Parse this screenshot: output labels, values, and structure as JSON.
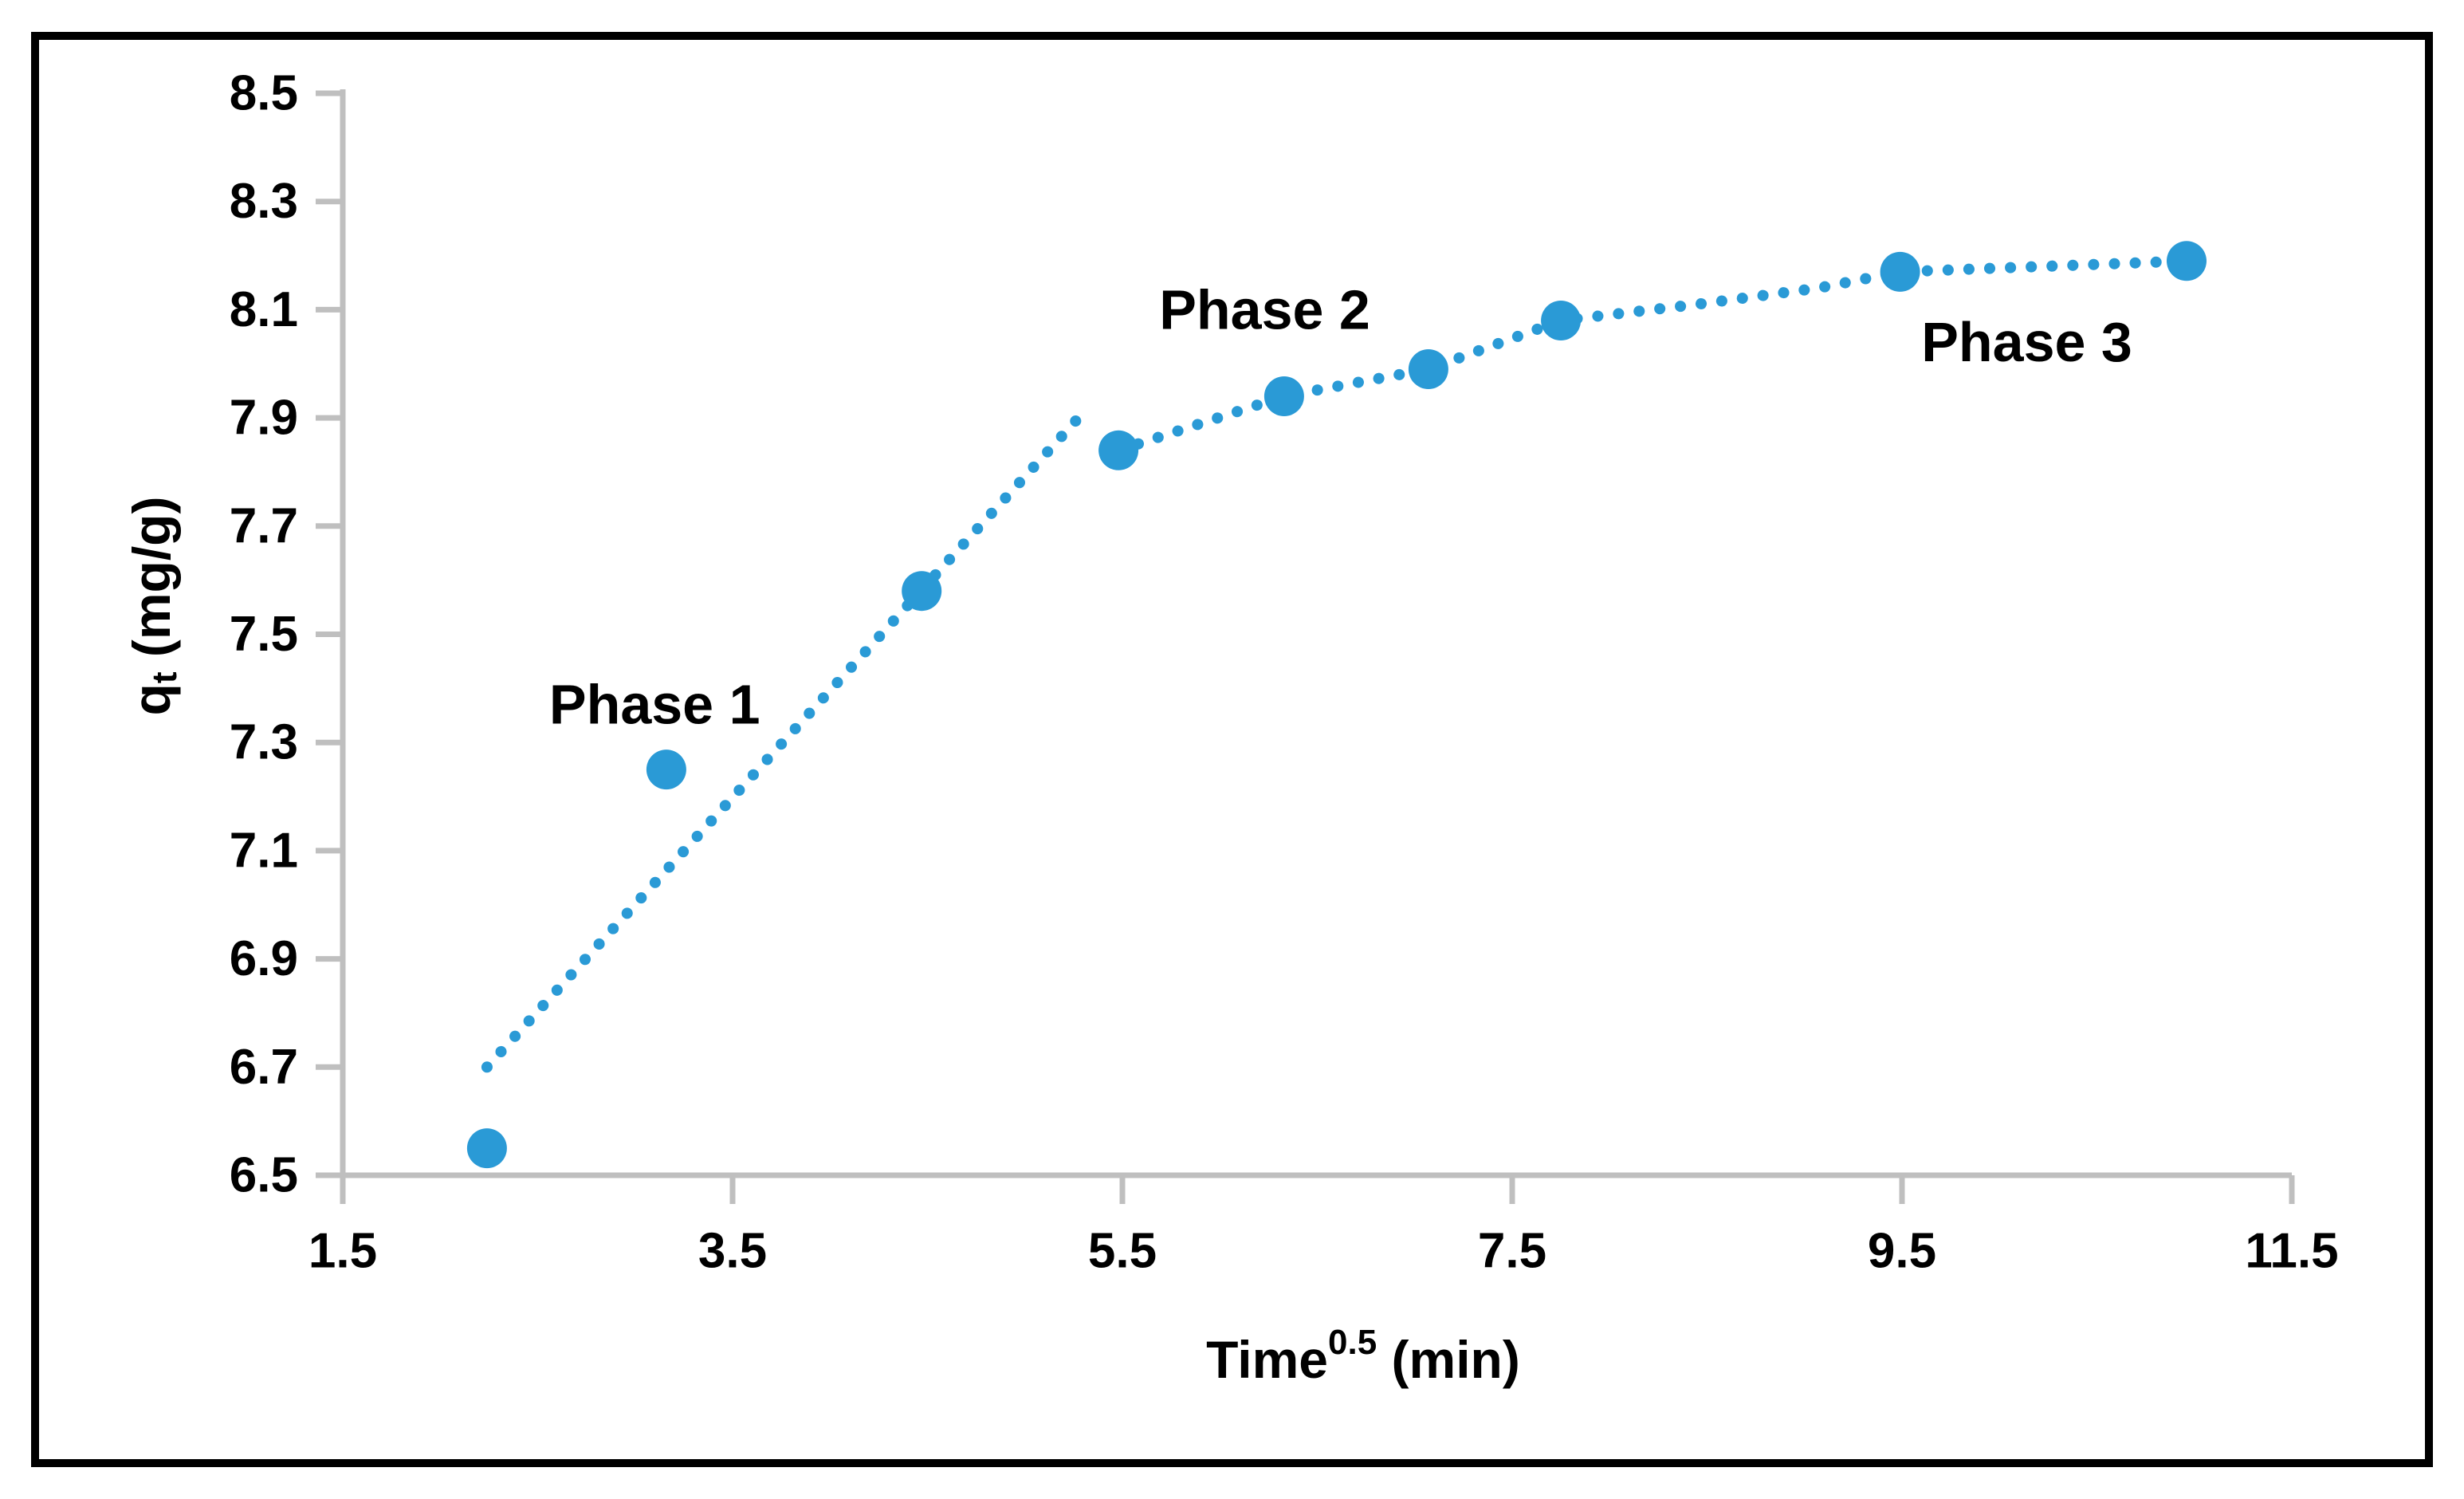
{
  "figure": {
    "background": "#ffffff",
    "border_color": "#000000",
    "border_width": 10
  },
  "chart_data": {
    "type": "scatter",
    "title": "",
    "xlabel": "Time^0.5 (min)",
    "ylabel": "q_t (mg/g)",
    "xlabel_parts": [
      {
        "text": "Time",
        "style": "normal"
      },
      {
        "text": "0.5",
        "style": "superscript"
      },
      {
        "text": " (min)",
        "style": "normal"
      }
    ],
    "ylabel_parts": [
      {
        "text": "q",
        "style": "normal"
      },
      {
        "text": "t",
        "style": "subscript"
      },
      {
        "text": " (mg/g)",
        "style": "normal"
      }
    ],
    "xlim": [
      1.5,
      11.5
    ],
    "ylim": [
      6.5,
      8.5
    ],
    "x_ticks": [
      "1.5",
      "3.5",
      "5.5",
      "7.5",
      "9.5",
      "11.5"
    ],
    "x_tick_values": [
      1.5,
      3.5,
      5.5,
      7.5,
      9.5,
      11.5
    ],
    "y_ticks": [
      "8.5",
      "8.3",
      "8.1",
      "7.9",
      "7.7",
      "7.5",
      "7.3",
      "7.1",
      "6.9",
      "6.7",
      "6.5"
    ],
    "y_tick_values": [
      8.5,
      8.3,
      8.1,
      7.9,
      7.7,
      7.5,
      7.3,
      7.1,
      6.9,
      6.7,
      6.5
    ],
    "grid": false,
    "legend": false,
    "series": [
      {
        "name": "qt-vs-sqrt-time",
        "marker": "circle",
        "points": [
          [
            2.24,
            6.55
          ],
          [
            3.16,
            7.25
          ],
          [
            4.47,
            7.58
          ],
          [
            5.48,
            7.84
          ],
          [
            6.33,
            7.94
          ],
          [
            7.07,
            7.99
          ],
          [
            7.75,
            8.08
          ],
          [
            9.49,
            8.17
          ],
          [
            10.96,
            8.19
          ]
        ]
      }
    ],
    "trendlines": [
      {
        "name": "phase-1-trendline",
        "style": "dotted",
        "points": [
          [
            2.24,
            6.7
          ],
          [
            5.3,
            7.91
          ]
        ]
      },
      {
        "name": "phase-2-3-trendline",
        "style": "dotted",
        "points": [
          [
            5.48,
            7.84
          ],
          [
            6.33,
            7.94
          ],
          [
            7.07,
            7.99
          ],
          [
            7.75,
            8.08
          ],
          [
            8.45,
            8.11
          ],
          [
            9.07,
            8.14
          ],
          [
            9.49,
            8.17
          ],
          [
            10.96,
            8.19
          ]
        ]
      }
    ],
    "annotations": [
      {
        "text": "Phase 1",
        "x": 3.1,
        "y": 7.37
      },
      {
        "text": "Phase 2",
        "x": 6.23,
        "y": 8.1
      },
      {
        "text": "Phase 3",
        "x": 10.14,
        "y": 8.04
      }
    ],
    "colors": {
      "marker": "#2A9AD6",
      "trendline": "#2A9AD6",
      "axis": "#BFBFBF",
      "text": "#000000"
    }
  }
}
